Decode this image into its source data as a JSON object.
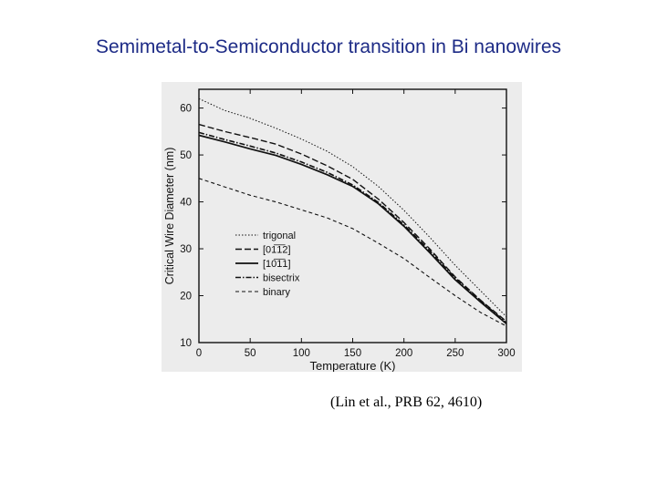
{
  "slide": {
    "title": "Semimetal-to-Semiconductor transition in Bi nanowires",
    "citation": "(Lin et al., PRB 62, 4610)"
  },
  "colors": {
    "title": "#1d2b86",
    "figure_bg": "#ececec",
    "ink": "#111111"
  },
  "chart_data": {
    "type": "line",
    "title": "",
    "xlabel": "Temperature (K)",
    "ylabel": "Critical Wire Diameter (nm)",
    "xlim": [
      0,
      300
    ],
    "ylim": [
      10,
      64
    ],
    "xticks": [
      0,
      50,
      100,
      150,
      200,
      250,
      300
    ],
    "yticks": [
      10,
      20,
      30,
      40,
      50,
      60
    ],
    "grid": false,
    "legend_position": "center-left",
    "series": [
      {
        "name": "trigonal",
        "style": "dotted",
        "x": [
          0,
          25,
          50,
          75,
          100,
          125,
          150,
          175,
          200,
          225,
          250,
          275,
          300
        ],
        "y": [
          62,
          59.5,
          57.8,
          55.7,
          53.4,
          50.8,
          47.5,
          43.3,
          38.2,
          32.5,
          26.5,
          21,
          15.5
        ]
      },
      {
        "name": "[01̅1̅2]",
        "style": "dashed",
        "x": [
          0,
          25,
          50,
          75,
          100,
          125,
          150,
          175,
          200,
          225,
          250,
          275,
          300
        ],
        "y": [
          56.5,
          55,
          53.7,
          52.3,
          50.2,
          47.7,
          44.8,
          40.6,
          35.6,
          30,
          24,
          19,
          14.5
        ]
      },
      {
        "name": "[10̅1̅1]",
        "style": "solid",
        "x": [
          0,
          25,
          50,
          75,
          100,
          125,
          150,
          175,
          200,
          225,
          250,
          275,
          300
        ],
        "y": [
          54.2,
          52.8,
          51.3,
          49.9,
          48,
          45.8,
          43.3,
          39.6,
          34.8,
          29.2,
          23.4,
          18.6,
          14
        ]
      },
      {
        "name": "bisectrix",
        "style": "dashdot",
        "x": [
          0,
          25,
          50,
          75,
          100,
          125,
          150,
          175,
          200,
          225,
          250,
          275,
          300
        ],
        "y": [
          54.8,
          53.3,
          51.9,
          50.4,
          48.5,
          46.3,
          43.6,
          39.9,
          35.1,
          29.6,
          23.8,
          18.9,
          14.2
        ]
      },
      {
        "name": "binary",
        "style": "dashed-short",
        "x": [
          0,
          25,
          50,
          75,
          100,
          125,
          150,
          175,
          200,
          225,
          250,
          275,
          300
        ],
        "y": [
          45,
          43.2,
          41.4,
          40,
          38.3,
          36.6,
          34.3,
          31.2,
          27.9,
          23.9,
          20,
          16.4,
          13.5
        ]
      }
    ]
  }
}
